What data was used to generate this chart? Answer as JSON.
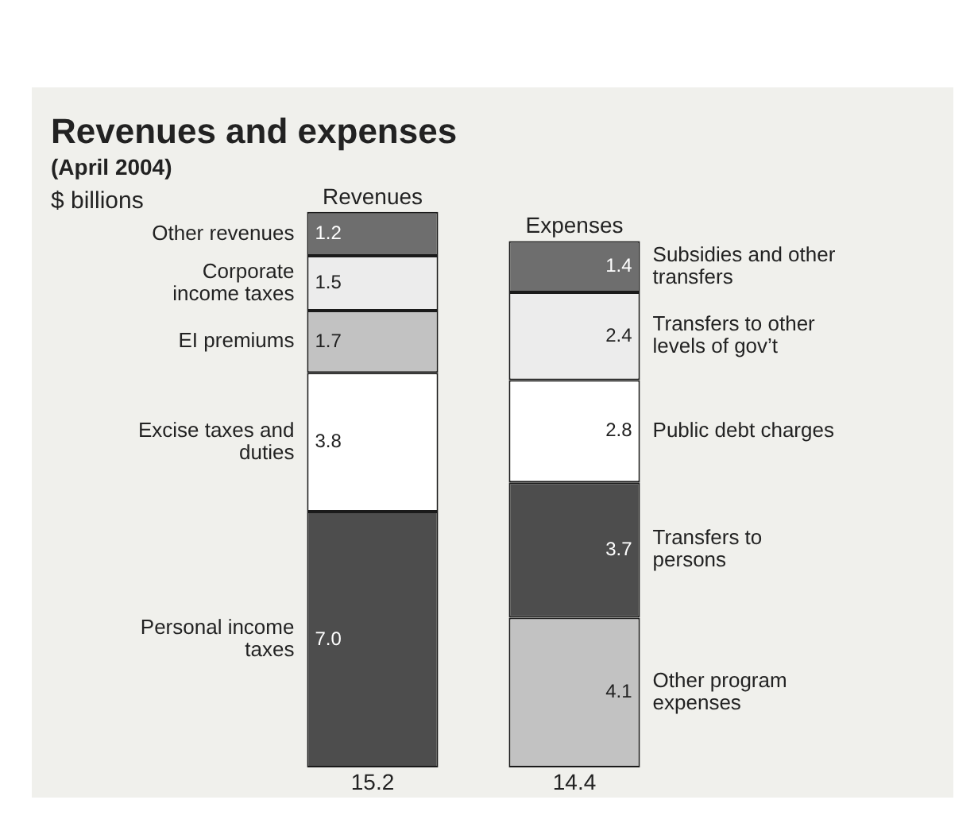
{
  "chart_data": {
    "type": "bar",
    "title": "Revenues and expenses",
    "subtitle": "(April 2004)",
    "annotations": [
      "$ billions"
    ],
    "categories": [
      "Revenues",
      "Expenses"
    ],
    "stacked": true,
    "totals": [
      "15.2",
      "14.4"
    ],
    "series": [
      {
        "name": "Personal income taxes",
        "color": "#4d4d4d",
        "values": [
          7.0,
          null
        ],
        "value_labels": [
          "7.0",
          null
        ]
      },
      {
        "name": "Excise taxes and duties",
        "color": "#ffffff",
        "values": [
          3.8,
          null
        ],
        "value_labels": [
          "3.8",
          null
        ]
      },
      {
        "name": "EI premiums",
        "color": "#c2c2c2",
        "values": [
          1.7,
          null
        ],
        "value_labels": [
          "1.7",
          null
        ]
      },
      {
        "name": "Corporate income taxes",
        "color": "#ececec",
        "values": [
          1.5,
          null
        ],
        "value_labels": [
          "1.5",
          null
        ]
      },
      {
        "name": "Other revenues",
        "color": "#6e6e6e",
        "values": [
          1.2,
          null
        ],
        "value_labels": [
          "1.2",
          null
        ]
      },
      {
        "name": "Other program expenses",
        "color": "#c2c2c2",
        "values": [
          null,
          4.1
        ],
        "value_labels": [
          null,
          "4.1"
        ]
      },
      {
        "name": "Transfers to persons",
        "color": "#4d4d4d",
        "values": [
          null,
          3.7
        ],
        "value_labels": [
          null,
          "3.7"
        ]
      },
      {
        "name": "Public debt charges",
        "color": "#ffffff",
        "values": [
          null,
          2.8
        ],
        "value_labels": [
          null,
          "2.8"
        ]
      },
      {
        "name": "Transfers to other levels of gov’t",
        "color": "#ececec",
        "values": [
          null,
          2.4
        ],
        "value_labels": [
          null,
          "2.4"
        ]
      },
      {
        "name": "Subsidies and other transfers",
        "color": "#6e6e6e",
        "values": [
          null,
          1.4
        ],
        "value_labels": [
          null,
          "1.4"
        ]
      }
    ]
  }
}
